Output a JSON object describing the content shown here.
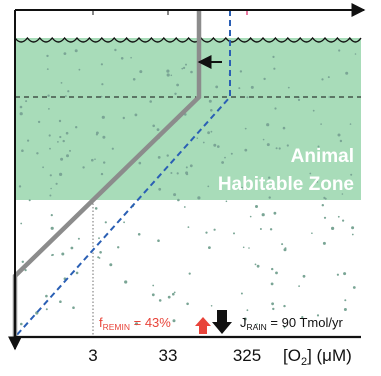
{
  "zone": {
    "line1": "Animal",
    "line2": "Habitable Zone"
  },
  "axis": {
    "ticks": [
      "3",
      "33",
      "325"
    ],
    "label_open": "[O",
    "label_sub": "2",
    "label_close": "] (μM)"
  },
  "annotations": {
    "f_remin_main": "f",
    "f_remin_sub": "REMIN",
    "f_remin_value": " = 43%",
    "j_rain_main": "J",
    "j_rain_sub": "RAIN",
    "j_rain_value": " = 90 Tmol/yr"
  },
  "colors": {
    "zone_fill": "#a8dcb9",
    "solid_profile": "#8c8c8c",
    "dashed_profile": "#2a5fb4",
    "f_remin_text": "#e8443a",
    "f_remin_arrow": "#e8443a",
    "j_rain_arrow": "#111111",
    "surface_marker": "#e0407a",
    "speckle": "#7aa595"
  }
}
